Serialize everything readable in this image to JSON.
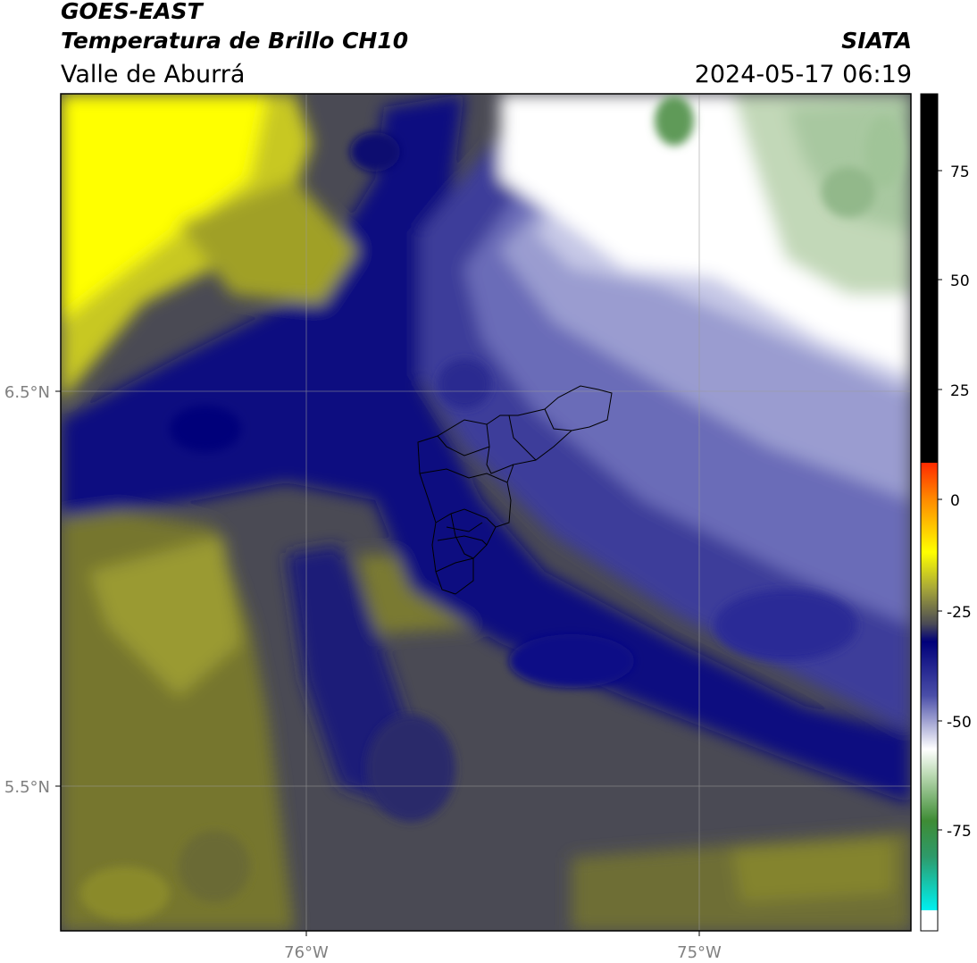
{
  "header": {
    "satellite": "GOES-EAST",
    "product": "Temperatura de Brillo CH10",
    "region": "Valle de Aburrá",
    "organization": "SIATA",
    "datetime": "2024-05-17 06:19"
  },
  "axes": {
    "lat_ticks": [
      "6.5°N",
      "5.5°N"
    ],
    "lon_ticks": [
      "76°W",
      "75°W"
    ]
  },
  "colorbar": {
    "ticks": [
      "75",
      "50",
      "25",
      "0",
      "-25",
      "-50",
      "-75"
    ]
  },
  "colors": {
    "yellow": "#ffff00",
    "olive": "#8c8c2a",
    "dark_gray": "#4a4a52",
    "navy": "#00007a",
    "periwinkle": "#8c8ec4",
    "white": "#ffffff",
    "green": "#6aa066",
    "black": "#000000"
  }
}
